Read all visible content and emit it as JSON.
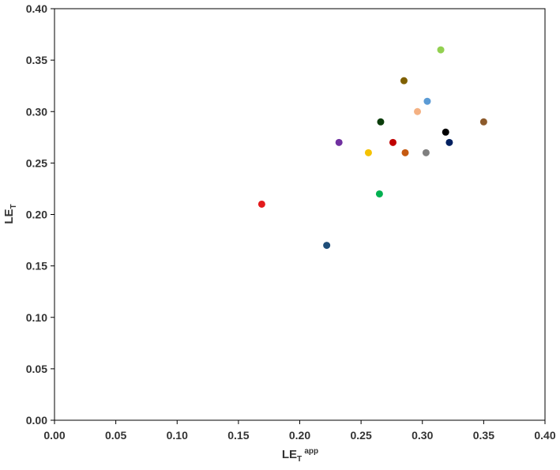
{
  "chart_data": {
    "type": "scatter",
    "title": "",
    "xlabel": {
      "base": "LE",
      "sub": "T",
      "sup": "app"
    },
    "ylabel": {
      "base": "LE",
      "sub": "T"
    },
    "xlim": [
      0,
      0.4
    ],
    "ylim": [
      0,
      0.4
    ],
    "xticks": [
      "0.00",
      "0.05",
      "0.10",
      "0.15",
      "0.20",
      "0.25",
      "0.30",
      "0.35",
      "0.40"
    ],
    "yticks": [
      "0.00",
      "0.05",
      "0.10",
      "0.15",
      "0.20",
      "0.25",
      "0.30",
      "0.35",
      "0.40"
    ],
    "grid": false,
    "legend": "none",
    "points": [
      {
        "x": 0.169,
        "y": 0.21,
        "color": "#e31a1c"
      },
      {
        "x": 0.222,
        "y": 0.17,
        "color": "#1f4e79"
      },
      {
        "x": 0.232,
        "y": 0.27,
        "color": "#7030a0"
      },
      {
        "x": 0.256,
        "y": 0.26,
        "color": "#f5c200"
      },
      {
        "x": 0.265,
        "y": 0.22,
        "color": "#00b050"
      },
      {
        "x": 0.266,
        "y": 0.29,
        "color": "#0b3d0b"
      },
      {
        "x": 0.276,
        "y": 0.27,
        "color": "#c00000"
      },
      {
        "x": 0.285,
        "y": 0.33,
        "color": "#7f6000"
      },
      {
        "x": 0.286,
        "y": 0.26,
        "color": "#c55a11"
      },
      {
        "x": 0.296,
        "y": 0.3,
        "color": "#f4b183"
      },
      {
        "x": 0.303,
        "y": 0.26,
        "color": "#7f7f7f"
      },
      {
        "x": 0.304,
        "y": 0.31,
        "color": "#5b9bd5"
      },
      {
        "x": 0.315,
        "y": 0.36,
        "color": "#92d050"
      },
      {
        "x": 0.319,
        "y": 0.28,
        "color": "#000000"
      },
      {
        "x": 0.322,
        "y": 0.27,
        "color": "#002060"
      },
      {
        "x": 0.35,
        "y": 0.29,
        "color": "#8c5a2b"
      }
    ]
  }
}
